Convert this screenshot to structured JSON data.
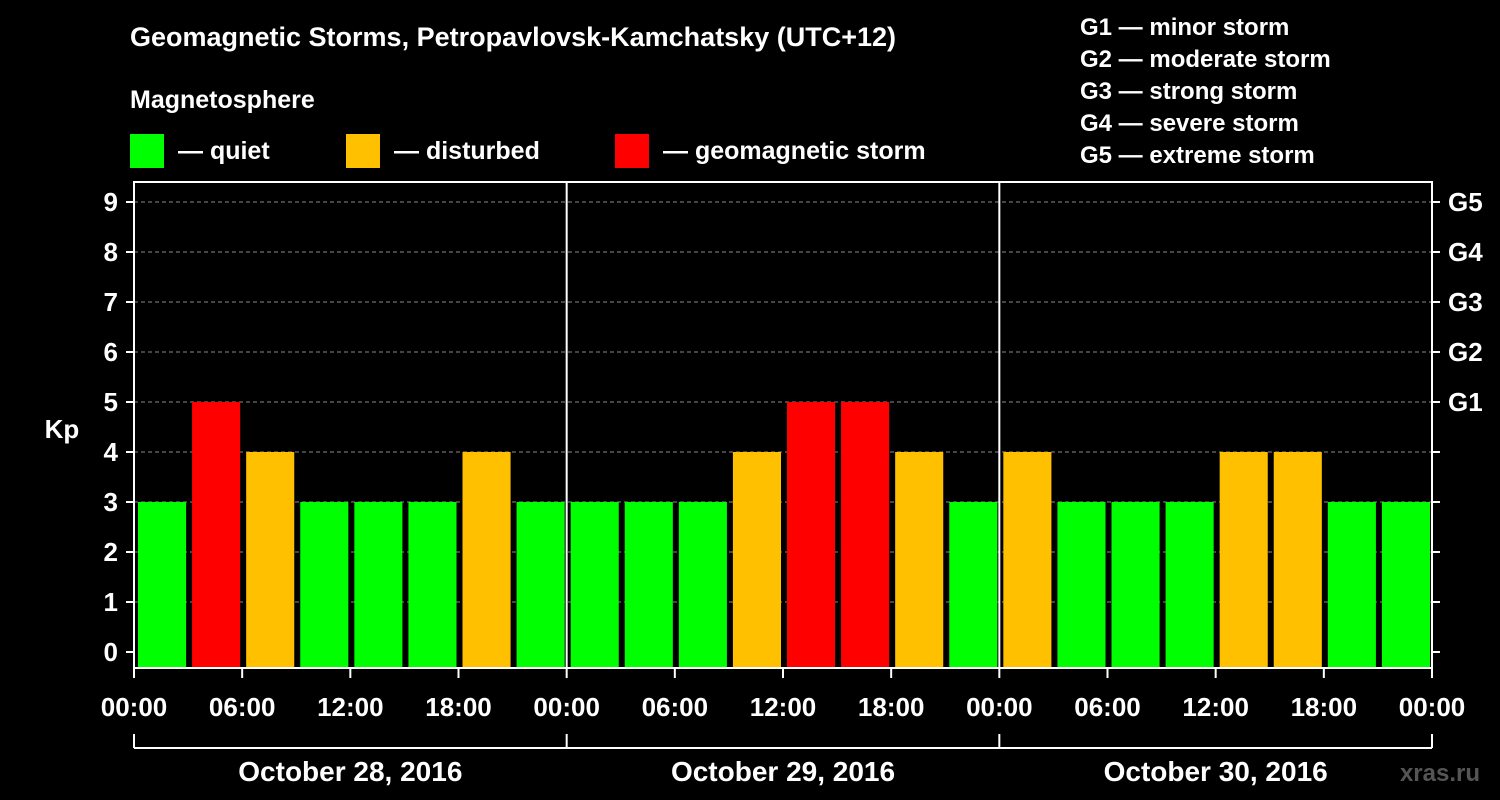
{
  "title": "Geomagnetic Storms, Petropavlovsk-Kamchatsky (UTC+12)",
  "magnetosphere_label": "Magnetosphere",
  "legend": [
    {
      "label": "— quiet",
      "color": "#00ff00"
    },
    {
      "label": "— disturbed",
      "color": "#ffc000"
    },
    {
      "label": "— geomagnetic storm",
      "color": "#ff0000"
    }
  ],
  "g_scale_legend": [
    "G1 — minor storm",
    "G2 — moderate storm",
    "G3 — strong storm",
    "G4 — severe storm",
    "G5 — extreme storm"
  ],
  "watermark": "xras.ru",
  "chart_data": {
    "type": "bar",
    "ylabel": "Kp",
    "ylim": [
      0,
      9
    ],
    "yticks": [
      "0",
      "1",
      "2",
      "3",
      "4",
      "5",
      "6",
      "7",
      "8",
      "9"
    ],
    "right_labels": [
      {
        "value": 5,
        "label": "G1"
      },
      {
        "value": 6,
        "label": "G2"
      },
      {
        "value": 7,
        "label": "G3"
      },
      {
        "value": 8,
        "label": "G4"
      },
      {
        "value": 9,
        "label": "G5"
      }
    ],
    "x_tick_labels": [
      "00:00",
      "06:00",
      "12:00",
      "18:00",
      "00:00",
      "06:00",
      "12:00",
      "18:00",
      "00:00",
      "06:00",
      "12:00",
      "18:00",
      "00:00"
    ],
    "days": [
      "October 28, 2016",
      "October 29, 2016",
      "October 30, 2016"
    ],
    "values": [
      3,
      5,
      4,
      3,
      3,
      3,
      4,
      3,
      3,
      3,
      3,
      4,
      5,
      5,
      4,
      3,
      4,
      3,
      3,
      3,
      4,
      4,
      3,
      3
    ],
    "status_colors": {
      "quiet": "#00ff00",
      "disturbed": "#ffc000",
      "storm": "#ff0000"
    },
    "grid": true
  }
}
